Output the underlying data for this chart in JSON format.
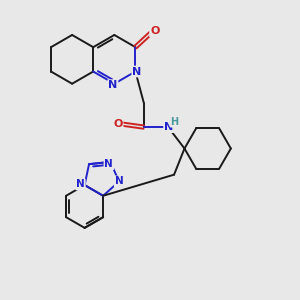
{
  "bg_color": "#e8e8e8",
  "bond_color": "#1a1a1a",
  "N_color": "#2222cc",
  "O_color": "#cc2222",
  "H_color": "#4a9a9a",
  "lw": 1.4,
  "dbo": 0.055,
  "figsize": [
    3.0,
    3.0
  ],
  "dpi": 100,
  "xlim": [
    0,
    10
  ],
  "ylim": [
    0,
    10
  ]
}
